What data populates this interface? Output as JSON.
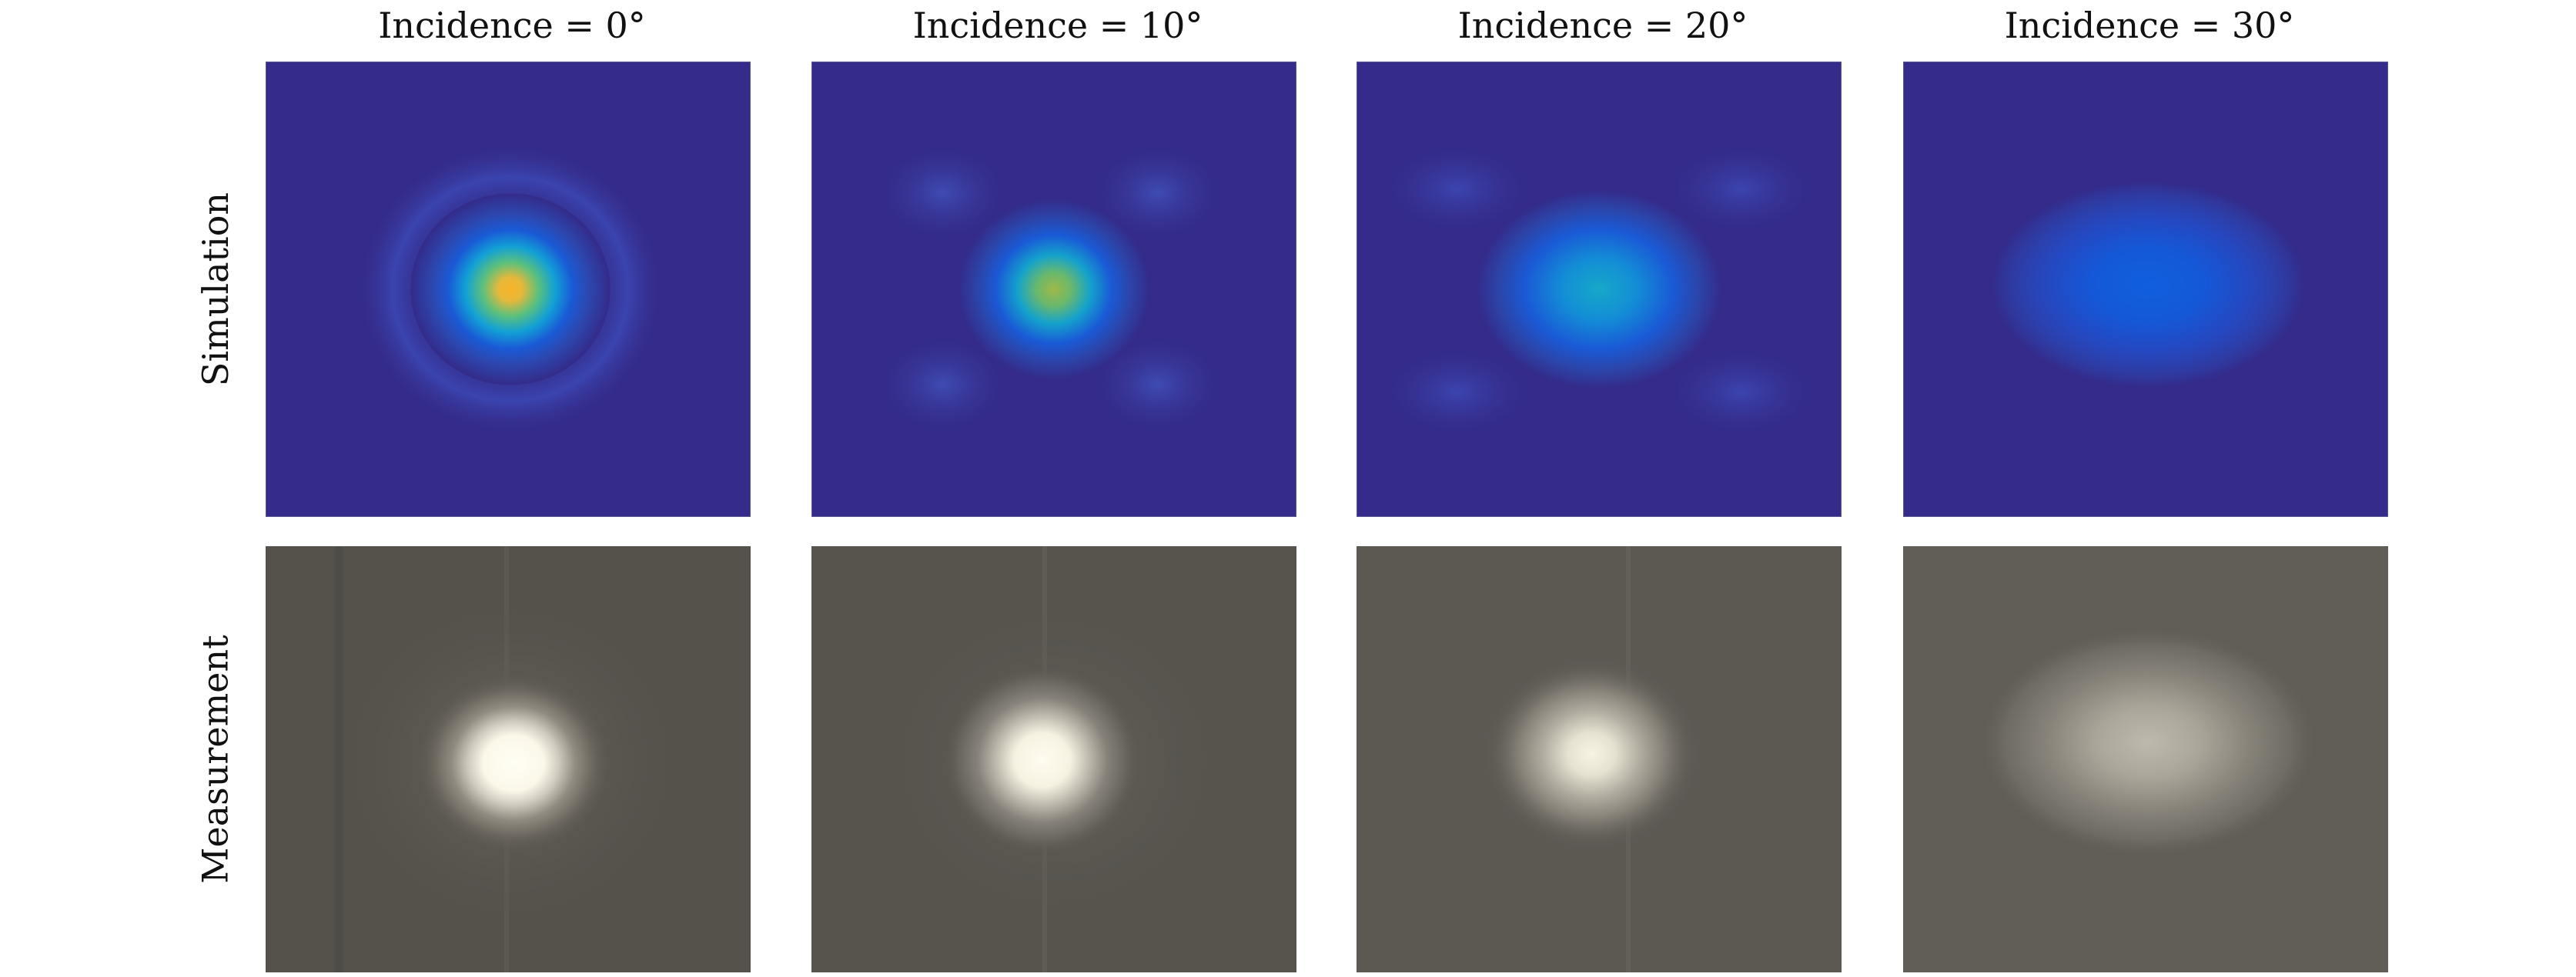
{
  "columns": [
    {
      "title": "Incidence = 0°"
    },
    {
      "title": "Incidence = 10°"
    },
    {
      "title": "Incidence = 20°"
    },
    {
      "title": "Incidence = 30°"
    }
  ],
  "rows": [
    {
      "label": "Simulation"
    },
    {
      "label": "Measurement"
    }
  ],
  "colors": {
    "sim_background": "#342b8a",
    "measurement_background": "#55524c",
    "beam_peak_0": "#f6b428",
    "beam_peak_10": "#9fb84a",
    "beam_peak_20": "#16a8c8",
    "beam_peak_30": "#1060dd"
  }
}
